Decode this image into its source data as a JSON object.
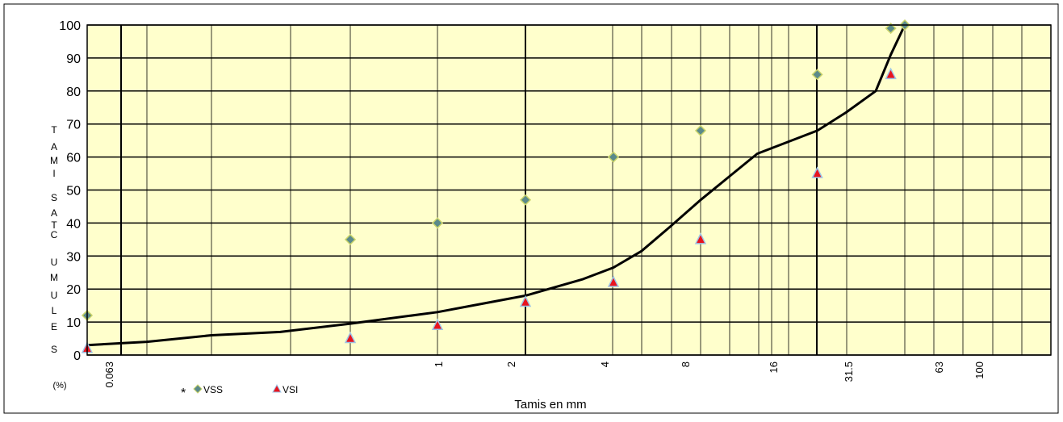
{
  "chart_data": {
    "type": "scatter",
    "xlabel": "Tamis en mm",
    "ylabel": "T A M I S A T C U M U L E S (%)",
    "ylabel_letters": [
      "T",
      "A",
      "M",
      "I",
      "S",
      "A",
      "T",
      "C",
      "U",
      "M",
      "U",
      "L",
      "E",
      "S",
      "(%)"
    ],
    "xscale": "log",
    "ylim": [
      0,
      100
    ],
    "yticks": [
      0,
      10,
      20,
      30,
      40,
      50,
      60,
      70,
      80,
      90,
      100
    ],
    "xtick_labels": [
      "0.063",
      "1",
      "2",
      "4",
      "8",
      "16",
      "31.5",
      "63",
      "100"
    ],
    "grid": true,
    "legend_position": "bottom-left",
    "series": [
      {
        "name": "VSS",
        "marker": "diamond",
        "color": "#5B8A8A",
        "points": [
          {
            "x": 0.05,
            "y": 12
          },
          {
            "x": 0.5,
            "y": 35
          },
          {
            "x": 1,
            "y": 40
          },
          {
            "x": 2,
            "y": 47
          },
          {
            "x": 4,
            "y": 60
          },
          {
            "x": 8,
            "y": 68
          },
          {
            "x": 20,
            "y": 85
          },
          {
            "x": 40,
            "y": 99
          },
          {
            "x": 50,
            "y": 100
          }
        ]
      },
      {
        "name": "VSI",
        "marker": "triangle",
        "color": "#E8141E",
        "points": [
          {
            "x": 0.05,
            "y": 2
          },
          {
            "x": 0.5,
            "y": 5
          },
          {
            "x": 1,
            "y": 9
          },
          {
            "x": 2,
            "y": 16
          },
          {
            "x": 4,
            "y": 22
          },
          {
            "x": 8,
            "y": 35
          },
          {
            "x": 20,
            "y": 55
          },
          {
            "x": 40,
            "y": 85
          }
        ]
      },
      {
        "marker": "none",
        "line": true,
        "color": "#000000",
        "points": [
          {
            "x": 0.05,
            "y": 3
          },
          {
            "x": 0.1,
            "y": 4
          },
          {
            "x": 0.2,
            "y": 6
          },
          {
            "x": 0.315,
            "y": 7
          },
          {
            "x": 0.5,
            "y": 9.5
          },
          {
            "x": 1,
            "y": 13
          },
          {
            "x": 2,
            "y": 18
          },
          {
            "x": 3.15,
            "y": 23
          },
          {
            "x": 4,
            "y": 26.5
          },
          {
            "x": 5,
            "y": 31.5
          },
          {
            "x": 6.3,
            "y": 39
          },
          {
            "x": 8,
            "y": 47
          },
          {
            "x": 10,
            "y": 54
          },
          {
            "x": 12.5,
            "y": 61
          },
          {
            "x": 20,
            "y": 68
          },
          {
            "x": 25,
            "y": 73.5
          },
          {
            "x": 31.5,
            "y": 80
          },
          {
            "x": 40,
            "y": 91
          },
          {
            "x": 50,
            "y": 100
          }
        ]
      }
    ]
  }
}
